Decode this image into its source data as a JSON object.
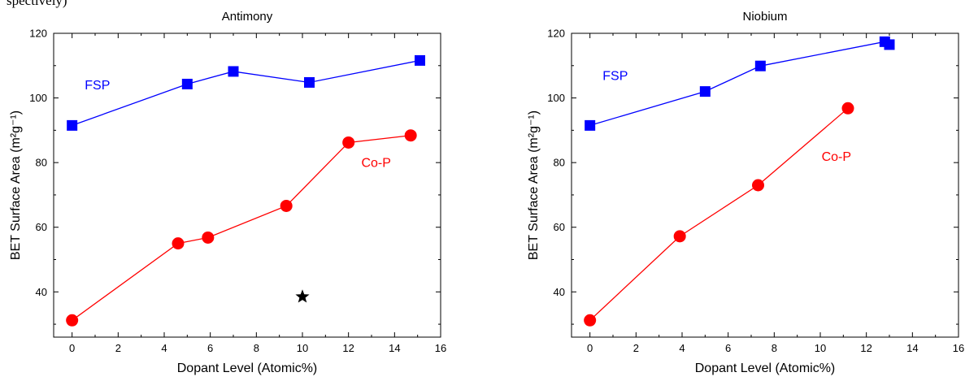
{
  "caption_fragment": "spectively)",
  "chart_data": [
    {
      "type": "line",
      "title": "Antimony",
      "xlabel": "Dopant Level (Atomic%)",
      "ylabel": "BET Surface Area (m²g⁻¹)",
      "xlim": [
        -0.8,
        16
      ],
      "ylim": [
        26,
        120
      ],
      "xticks": [
        0,
        2,
        4,
        6,
        8,
        10,
        12,
        14,
        16
      ],
      "yticks": [
        40,
        60,
        80,
        100,
        120
      ],
      "series": [
        {
          "name": "FSP",
          "color": "#0000ff",
          "marker": "square",
          "x": [
            0,
            5,
            7,
            10.3,
            15.1
          ],
          "y": [
            91.5,
            104.3,
            108.2,
            104.8,
            111.6
          ]
        },
        {
          "name": "Co-P",
          "color": "#ff0000",
          "marker": "circle",
          "x": [
            0,
            4.6,
            5.9,
            9.3,
            12,
            14.7
          ],
          "y": [
            31.2,
            55,
            56.8,
            66.6,
            86.2,
            88.4
          ]
        }
      ],
      "annotations": [
        {
          "text": "FSP",
          "x": 1.1,
          "y": 102.6,
          "color": "#0000ff"
        },
        {
          "text": "Co-P",
          "x": 13.2,
          "y": 78.6,
          "color": "#ff0000"
        }
      ],
      "extra_points": [
        {
          "marker": "star",
          "x": 10,
          "y": 38.5,
          "color": "#000000"
        }
      ]
    },
    {
      "type": "line",
      "title": "Niobium",
      "xlabel": "Dopant Level (Atomic%)",
      "ylabel": "BET Surface Area (m²g⁻¹)",
      "xlim": [
        -0.8,
        16
      ],
      "ylim": [
        26,
        120
      ],
      "xticks": [
        0,
        2,
        4,
        6,
        8,
        10,
        12,
        14,
        16
      ],
      "yticks": [
        40,
        60,
        80,
        100,
        120
      ],
      "series": [
        {
          "name": "FSP",
          "color": "#0000ff",
          "marker": "square",
          "x": [
            0,
            5,
            7.4,
            12.8,
            13
          ],
          "y": [
            91.5,
            102,
            109.9,
            117.4,
            116.5
          ]
        },
        {
          "name": "Co-P",
          "color": "#ff0000",
          "marker": "circle",
          "x": [
            0,
            3.9,
            7.3,
            11.2
          ],
          "y": [
            31.2,
            57.2,
            73,
            96.8
          ]
        }
      ],
      "annotations": [
        {
          "text": "FSP",
          "x": 1.1,
          "y": 105.6,
          "color": "#0000ff"
        },
        {
          "text": "Co-P",
          "x": 10.7,
          "y": 80.6,
          "color": "#ff0000"
        }
      ],
      "extra_points": []
    }
  ]
}
